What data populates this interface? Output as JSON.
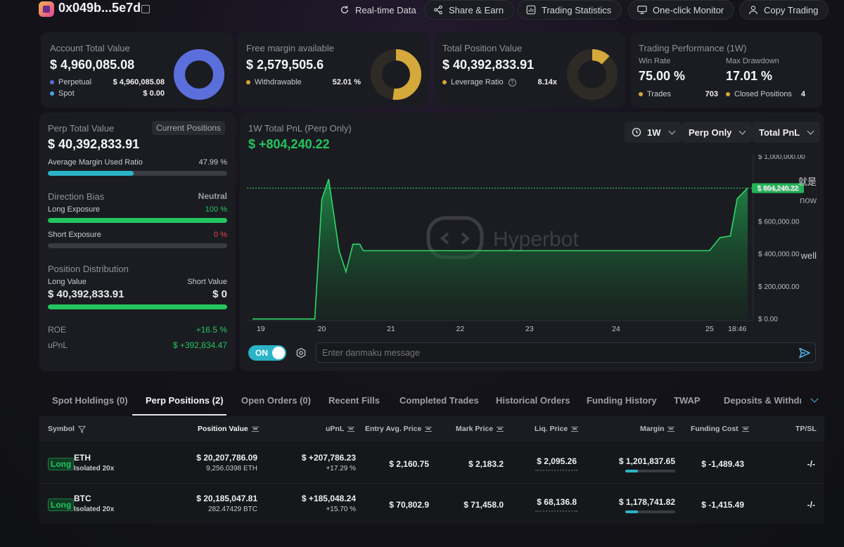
{
  "header": {
    "address": "0x049b...5e7d",
    "buttons": [
      "Real-time Data",
      "Share & Earn",
      "Trading Statistics",
      "One-click Monitor",
      "Copy Trading"
    ]
  },
  "account": {
    "label": "Account Total Value",
    "value": "$ 4,960,085.08",
    "rows": [
      {
        "label": "Perpetual",
        "value": "$ 4,960,085.08"
      },
      {
        "label": "Spot",
        "value": "$ 0.00"
      }
    ],
    "donut_fraction": 1.0
  },
  "margin": {
    "label": "Free margin available",
    "value": "$ 2,579,505.6",
    "row_label": "Withdrawable",
    "row_value": "52.01 %",
    "donut_fraction": 0.5201
  },
  "position_value": {
    "label": "Total Position Value",
    "value": "$ 40,392,833.91",
    "row_label": "Leverage Ratio",
    "row_value": "8.14x",
    "donut_fraction": 0.12
  },
  "performance": {
    "label": "Trading Performance (1W)",
    "win_rate_label": "Win Rate",
    "win_rate": "75.00 %",
    "drawdown_label": "Max Drawdown",
    "drawdown": "17.01 %",
    "trades_label": "Trades",
    "trades": "703",
    "closed_label": "Closed Positions",
    "closed": "4"
  },
  "perp": {
    "label": "Perp Total Value",
    "badge": "Current Positions",
    "value": "$ 40,392,833.91",
    "margin_ratio_label": "Average Margin Used Ratio",
    "margin_ratio": "47.99 %",
    "margin_ratio_fraction": 0.4799,
    "bias_label": "Direction Bias",
    "bias_value": "Neutral",
    "long_label": "Long Exposure",
    "long_pct": "100 %",
    "long_fraction": 1.0,
    "short_label": "Short Exposure",
    "short_pct": "0 %",
    "short_fraction": 0.0,
    "dist_label": "Position Distribution",
    "long_value_label": "Long Value",
    "short_value_label": "Short Value",
    "long_value": "$ 40,392,833.91",
    "short_value": "$ 0",
    "dist_fraction": 1.0,
    "roe_label": "ROE",
    "roe": "+16.5 %",
    "upnl_label": "uPnL",
    "upnl": "$ +392,834.47"
  },
  "pnl": {
    "title": "1W Total PnL (Perp Only)",
    "value": "$ +804,240.22",
    "controls": [
      "1W",
      "Perp Only",
      "Total PnL"
    ],
    "watermark": "Hyperbot",
    "toggle": "ON",
    "danmaku_placeholder": "Enter danmaku message",
    "overlay_words": [
      "就是",
      "now",
      "well"
    ]
  },
  "chart_data": {
    "type": "area",
    "title": "1W Total PnL (Perp Only)",
    "x_ticks": [
      "19",
      "20",
      "21",
      "22",
      "23",
      "24",
      "25",
      "18:46"
    ],
    "y_ticks": [
      "$ 1,000,000.00",
      "$ 800,000.00",
      "$ 600,000.00",
      "$ 400,000.00",
      "$ 200,000.00",
      "$ 0.00"
    ],
    "ylim": [
      -10000,
      1010000
    ],
    "current_label": "$ 804,240.22",
    "current_value": 804240,
    "x": [
      0,
      0.9,
      1.0,
      1.1,
      1.25,
      1.35,
      1.45,
      1.55,
      1.6,
      2.0,
      3.0,
      4.0,
      5.0,
      6.0,
      6.6,
      6.75,
      6.9,
      7.0,
      7.15
    ],
    "values": [
      0,
      0,
      735000,
      860000,
      420000,
      290000,
      460000,
      460000,
      420000,
      420000,
      420000,
      420000,
      420000,
      420000,
      420000,
      500000,
      510000,
      740000,
      804240
    ],
    "ylabel": "",
    "xlabel": ""
  },
  "tabs": [
    "Spot Holdings (0)",
    "Perp Positions (2)",
    "Open Orders (0)",
    "Recent Fills",
    "Completed Trades",
    "Historical Orders",
    "Funding History",
    "TWAP",
    "Deposits & Withdraw"
  ],
  "table": {
    "headers": [
      "Symbol",
      "Position Value",
      "uPnL",
      "Entry Avg. Price",
      "Mark Price",
      "Liq. Price",
      "Margin",
      "Funding Cost",
      "TP/SL"
    ],
    "rows": [
      {
        "side": "Long",
        "coin": "ETH",
        "mode": "Isolated 20x",
        "pos_value": "$ 20,207,786.09",
        "pos_size": "9,256.0398 ETH",
        "upnl": "$ +207,786.23",
        "upnl_pct": "+17.29 %",
        "entry": "$ 2,160.75",
        "mark": "$ 2,183.2",
        "liq": "$ 2,095.26",
        "margin": "$ 1,201,837.65",
        "margin_fraction": 0.25,
        "funding": "$ -1,489.43",
        "tpsl": "-/-"
      },
      {
        "side": "Long",
        "coin": "BTC",
        "mode": "Isolated 20x",
        "pos_value": "$ 20,185,047.81",
        "pos_size": "282.47429 BTC",
        "upnl": "$ +185,048.24",
        "upnl_pct": "+15.70 %",
        "entry": "$ 70,802.9",
        "mark": "$ 71,458.0",
        "liq": "$ 68,136.8",
        "margin": "$ 1,178,741.82",
        "margin_fraction": 0.25,
        "funding": "$ -1,415.49",
        "tpsl": "-/-"
      }
    ]
  },
  "colors": {
    "accent_green": "#22c55e",
    "donut_blue": "#5b6fdc",
    "donut_gold": "#d4a83a",
    "teal": "#2bb3c8",
    "negative": "#e5484d"
  }
}
